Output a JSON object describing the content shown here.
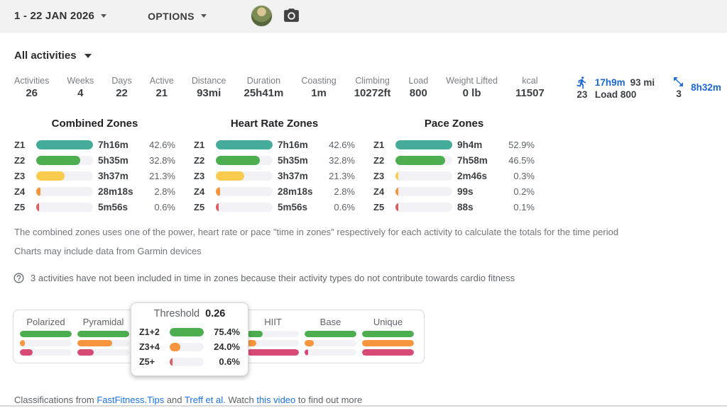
{
  "colors": {
    "teal": "#45ab9b",
    "green": "#4cae4f",
    "yellow": "#fbcb4e",
    "orange": "#f6953e",
    "red": "#e05d5d",
    "pink": "#d84a76",
    "link_blue": "#1a73e8",
    "icon_blue": "#1967d2"
  },
  "topbar": {
    "date_range": "1 - 22 JAN 2026",
    "options_label": "OPTIONS"
  },
  "filter": {
    "label": "All activities"
  },
  "stats": {
    "items": [
      {
        "label": "Activities",
        "value": "26"
      },
      {
        "label": "Weeks",
        "value": "4"
      },
      {
        "label": "Days",
        "value": "22"
      },
      {
        "label": "Active",
        "value": "21"
      },
      {
        "label": "Distance",
        "value": "93mi"
      },
      {
        "label": "Duration",
        "value": "25h41m"
      },
      {
        "label": "Coasting",
        "value": "1m"
      },
      {
        "label": "Climbing",
        "value": "10272ft"
      },
      {
        "label": "Load",
        "value": "800"
      },
      {
        "label": "Weight Lifted",
        "value": "0 lb"
      },
      {
        "label": "kcal",
        "value": "11507"
      }
    ]
  },
  "sports": {
    "run": {
      "count": "23",
      "time": "17h9m",
      "distance": "93 mi",
      "load": "Load 800"
    },
    "other": {
      "count": "3",
      "time": "8h32m"
    }
  },
  "chart_data": [
    {
      "type": "bar",
      "title": "Combined Zones",
      "categories": [
        "Z1",
        "Z2",
        "Z3",
        "Z4",
        "Z5"
      ],
      "rows": [
        {
          "zone": "Z1",
          "time": "7h16m",
          "pct": "42.6%",
          "rel_width": 100
        },
        {
          "zone": "Z2",
          "time": "5h35m",
          "pct": "32.8%",
          "rel_width": 77
        },
        {
          "zone": "Z3",
          "time": "3h37m",
          "pct": "21.3%",
          "rel_width": 50
        },
        {
          "zone": "Z4",
          "time": "28m18s",
          "pct": "2.8%",
          "rel_width": 7
        },
        {
          "zone": "Z5",
          "time": "5m56s",
          "pct": "0.6%",
          "rel_width": 2
        }
      ]
    },
    {
      "type": "bar",
      "title": "Heart Rate Zones",
      "categories": [
        "Z1",
        "Z2",
        "Z3",
        "Z4",
        "Z5"
      ],
      "rows": [
        {
          "zone": "Z1",
          "time": "7h16m",
          "pct": "42.6%",
          "rel_width": 100
        },
        {
          "zone": "Z2",
          "time": "5h35m",
          "pct": "32.8%",
          "rel_width": 77
        },
        {
          "zone": "Z3",
          "time": "3h37m",
          "pct": "21.3%",
          "rel_width": 50
        },
        {
          "zone": "Z4",
          "time": "28m18s",
          "pct": "2.8%",
          "rel_width": 7
        },
        {
          "zone": "Z5",
          "time": "5m56s",
          "pct": "0.6%",
          "rel_width": 2
        }
      ]
    },
    {
      "type": "bar",
      "title": "Pace Zones",
      "categories": [
        "Z1",
        "Z2",
        "Z3",
        "Z4",
        "Z5"
      ],
      "rows": [
        {
          "zone": "Z1",
          "time": "9h4m",
          "pct": "52.9%",
          "rel_width": 100
        },
        {
          "zone": "Z2",
          "time": "7h58m",
          "pct": "46.5%",
          "rel_width": 88
        },
        {
          "zone": "Z3",
          "time": "2m46s",
          "pct": "0.3%",
          "rel_width": 1
        },
        {
          "zone": "Z4",
          "time": "99s",
          "pct": "0.2%",
          "rel_width": 1
        },
        {
          "zone": "Z5",
          "time": "88s",
          "pct": "0.1%",
          "rel_width": 1
        }
      ]
    },
    {
      "type": "bar",
      "title": "Polarized",
      "rows": [
        {
          "rel_width": 100
        },
        {
          "rel_width": 10
        },
        {
          "rel_width": 24
        }
      ]
    },
    {
      "type": "bar",
      "title": "Pyramidal",
      "rows": [
        {
          "rel_width": 100
        },
        {
          "rel_width": 67
        },
        {
          "rel_width": 31
        }
      ]
    },
    {
      "type": "bar",
      "title": "Threshold",
      "value": "0.26",
      "categories": [
        "Z1+2",
        "Z3+4",
        "Z5+"
      ],
      "rows": [
        {
          "zone": "Z1+2",
          "pct": "75.4%",
          "rel_width": 100
        },
        {
          "zone": "Z3+4",
          "pct": "24.0%",
          "rel_width": 32
        },
        {
          "zone": "Z5+",
          "pct": "0.6%",
          "rel_width": 2
        }
      ]
    },
    {
      "type": "bar",
      "title": "HIIT",
      "rows": [
        {
          "rel_width": 30
        },
        {
          "rel_width": 18
        },
        {
          "rel_width": 100
        }
      ]
    },
    {
      "type": "bar",
      "title": "Base",
      "rows": [
        {
          "rel_width": 100
        },
        {
          "rel_width": 18
        },
        {
          "rel_width": 7
        }
      ]
    },
    {
      "type": "bar",
      "title": "Unique",
      "rows": [
        {
          "rel_width": 100
        },
        {
          "rel_width": 100
        },
        {
          "rel_width": 100
        }
      ]
    }
  ],
  "notes": {
    "line1": "The combined zones uses one of the power, heart rate or pace \"time in zones\" respectively for each activity to calculate the totals for the time period",
    "line2": "Charts may include data from Garmin devices",
    "warning": "3 activities have not been included in time in zones because their activity types do not contribute towards cardio fitness"
  },
  "footer": {
    "prefix": "Classifications from",
    "link1": "FastFitness.Tips",
    "mid1": "and",
    "link2": "Treff et al.",
    "mid2": "Watch",
    "link3": "this video",
    "suffix": "to find out more"
  }
}
